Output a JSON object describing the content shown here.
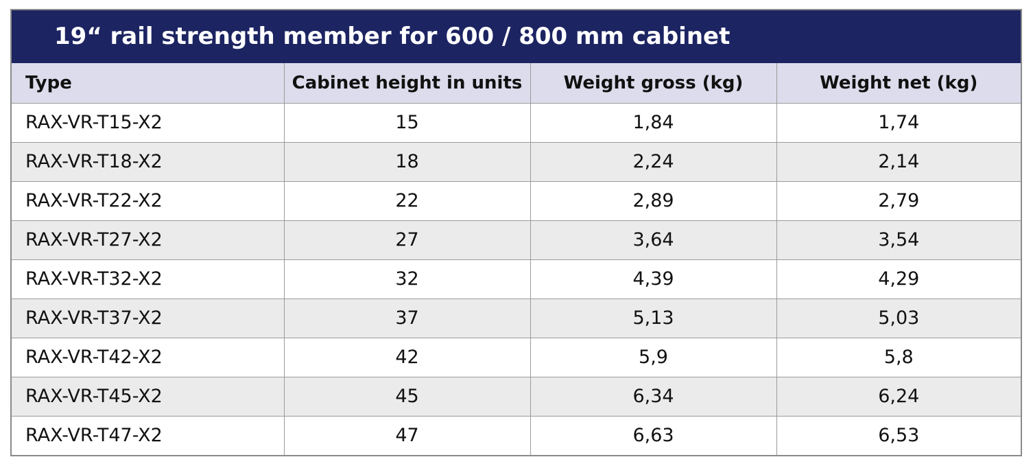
{
  "header": {
    "title": "19“ rail strength member for 600 / 800 mm cabinet"
  },
  "table": {
    "columns": [
      "Type",
      "Cabinet height in units",
      "Weight gross (kg)",
      "Weight net (kg)"
    ],
    "rows": [
      [
        "RAX-VR-T15-X2",
        "15",
        "1,84",
        "1,74"
      ],
      [
        "RAX-VR-T18-X2",
        "18",
        "2,24",
        "2,14"
      ],
      [
        "RAX-VR-T22-X2",
        "22",
        "2,89",
        "2,79"
      ],
      [
        "RAX-VR-T27-X2",
        "27",
        "3,64",
        "3,54"
      ],
      [
        "RAX-VR-T32-X2",
        "32",
        "4,39",
        "4,29"
      ],
      [
        "RAX-VR-T37-X2",
        "37",
        "5,13",
        "5,03"
      ],
      [
        "RAX-VR-T42-X2",
        "42",
        "5,9",
        "5,8"
      ],
      [
        "RAX-VR-T45-X2",
        "45",
        "6,34",
        "6,24"
      ],
      [
        "RAX-VR-T47-X2",
        "47",
        "6,63",
        "6,53"
      ]
    ]
  }
}
